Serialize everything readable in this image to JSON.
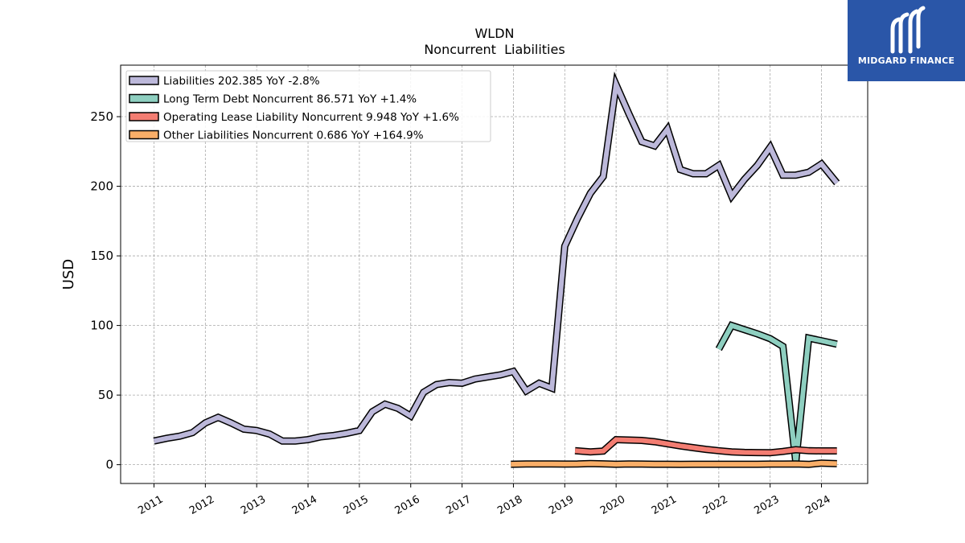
{
  "brand": {
    "name": "MIDGARD FINANCE",
    "bg_color": "#2a56a8",
    "icon": "midgard-logo-icon"
  },
  "chart_data": {
    "type": "line",
    "title": "WLDN",
    "subtitle": "Noncurrent  Liabilities",
    "ylabel": "USD",
    "xlabel": "",
    "xlim": [
      2010.35,
      2024.9
    ],
    "ylim": [
      -13.5,
      287
    ],
    "yticks": [
      0,
      50,
      100,
      150,
      200,
      250
    ],
    "xticks": [
      "2011",
      "2012",
      "2013",
      "2014",
      "2015",
      "2016",
      "2017",
      "2018",
      "2019",
      "2020",
      "2021",
      "2022",
      "2023",
      "2024"
    ],
    "grid": true,
    "legend_position": "top-left",
    "series": [
      {
        "name": "Liabilities  202.385 YoY -2.8%",
        "color": "#bcb8da",
        "points": [
          [
            2011.0,
            17
          ],
          [
            2011.25,
            19
          ],
          [
            2011.5,
            20.5
          ],
          [
            2011.75,
            23
          ],
          [
            2012.0,
            30
          ],
          [
            2012.25,
            34
          ],
          [
            2012.5,
            30
          ],
          [
            2012.75,
            25.5
          ],
          [
            2013.0,
            24.5
          ],
          [
            2013.25,
            22
          ],
          [
            2013.5,
            17
          ],
          [
            2013.75,
            17
          ],
          [
            2014.0,
            18
          ],
          [
            2014.25,
            20
          ],
          [
            2014.5,
            21
          ],
          [
            2014.75,
            22.5
          ],
          [
            2015.0,
            24.5
          ],
          [
            2015.25,
            38
          ],
          [
            2015.5,
            43.5
          ],
          [
            2015.75,
            40.5
          ],
          [
            2016.0,
            35
          ],
          [
            2016.25,
            52
          ],
          [
            2016.5,
            57.5
          ],
          [
            2016.75,
            59
          ],
          [
            2017.0,
            58.5
          ],
          [
            2017.25,
            61.5
          ],
          [
            2017.5,
            63
          ],
          [
            2017.75,
            64.5
          ],
          [
            2018.0,
            67
          ],
          [
            2018.25,
            53
          ],
          [
            2018.5,
            58.5
          ],
          [
            2018.75,
            55
          ],
          [
            2019.0,
            157
          ],
          [
            2019.25,
            177
          ],
          [
            2019.5,
            195
          ],
          [
            2019.75,
            207
          ],
          [
            2020.0,
            273
          ],
          [
            2020.25,
            252
          ],
          [
            2020.5,
            232
          ],
          [
            2020.75,
            229
          ],
          [
            2021.0,
            241
          ],
          [
            2021.25,
            212
          ],
          [
            2021.5,
            209
          ],
          [
            2021.75,
            209
          ],
          [
            2022.0,
            215
          ],
          [
            2022.25,
            193
          ],
          [
            2022.5,
            205
          ],
          [
            2022.75,
            215
          ],
          [
            2023.0,
            228
          ],
          [
            2023.25,
            208
          ],
          [
            2023.5,
            208
          ],
          [
            2023.75,
            210
          ],
          [
            2024.0,
            216
          ],
          [
            2024.3,
            202.4
          ]
        ]
      },
      {
        "name": "Long Term Debt Noncurrent  86.571 YoY +1.4%",
        "color": "#8ecfc0",
        "points": [
          [
            2022.0,
            83
          ],
          [
            2022.25,
            100
          ],
          [
            2022.5,
            97
          ],
          [
            2022.75,
            94
          ],
          [
            2023.0,
            90.5
          ],
          [
            2023.25,
            85
          ],
          [
            2023.5,
            2
          ],
          [
            2023.75,
            91
          ],
          [
            2024.0,
            89
          ],
          [
            2024.3,
            86.6
          ]
        ]
      },
      {
        "name": "Operating Lease Liability Noncurrent  9.948 YoY +1.6%",
        "color": "#f37d72",
        "points": [
          [
            2019.2,
            10
          ],
          [
            2019.5,
            9.2
          ],
          [
            2019.75,
            9.8
          ],
          [
            2020.0,
            18
          ],
          [
            2020.25,
            17.7
          ],
          [
            2020.5,
            17.4
          ],
          [
            2020.75,
            16.5
          ],
          [
            2021.0,
            15
          ],
          [
            2021.25,
            13.5
          ],
          [
            2021.5,
            12.2
          ],
          [
            2021.75,
            11
          ],
          [
            2022.0,
            10
          ],
          [
            2022.25,
            9.2
          ],
          [
            2022.5,
            8.8
          ],
          [
            2022.75,
            8.7
          ],
          [
            2023.0,
            8.6
          ],
          [
            2023.25,
            9.5
          ],
          [
            2023.5,
            10.8
          ],
          [
            2023.75,
            10
          ],
          [
            2024.0,
            9.9
          ],
          [
            2024.3,
            9.9
          ]
        ]
      },
      {
        "name": "Other Liabilities Noncurrent  0.686 YoY +164.9%",
        "color": "#f9ae68",
        "points": [
          [
            2017.95,
            0.3
          ],
          [
            2018.25,
            0.5
          ],
          [
            2018.5,
            0.5
          ],
          [
            2018.75,
            0.5
          ],
          [
            2019.0,
            0.4
          ],
          [
            2019.25,
            0.5
          ],
          [
            2019.5,
            0.8
          ],
          [
            2019.75,
            0.6
          ],
          [
            2020.0,
            0.3
          ],
          [
            2020.25,
            0.5
          ],
          [
            2020.5,
            0.4
          ],
          [
            2020.75,
            0.3
          ],
          [
            2021.0,
            0.3
          ],
          [
            2021.25,
            0.2
          ],
          [
            2021.5,
            0.3
          ],
          [
            2021.75,
            0.3
          ],
          [
            2022.0,
            0.3
          ],
          [
            2022.25,
            0.3
          ],
          [
            2022.5,
            0.3
          ],
          [
            2022.75,
            0.3
          ],
          [
            2023.0,
            0.4
          ],
          [
            2023.25,
            0.4
          ],
          [
            2023.5,
            0.5
          ],
          [
            2023.75,
            0.2
          ],
          [
            2024.0,
            1.1
          ],
          [
            2024.3,
            0.7
          ]
        ]
      }
    ]
  }
}
